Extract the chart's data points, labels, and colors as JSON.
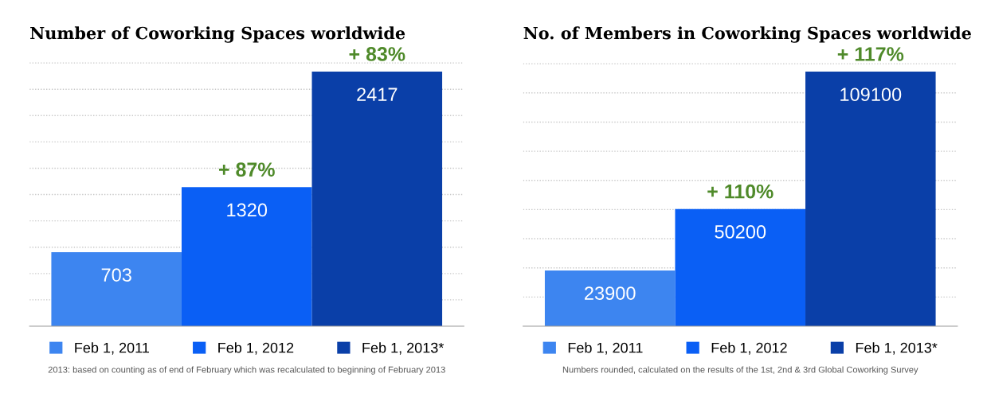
{
  "chart_data": [
    {
      "type": "bar",
      "title": "Number of Coworking Spaces worldwide",
      "categories": [
        null
      ],
      "series": [
        {
          "name": "Feb 1, 2011",
          "color": "#3d85f0",
          "values": [
            703
          ]
        },
        {
          "name": "Feb 1, 2012",
          "color": "#0a5ff5",
          "values": [
            1320
          ]
        },
        {
          "name": "Feb 1, 2013*",
          "color": "#0a3fa8",
          "values": [
            2417
          ]
        }
      ],
      "yticks": [
        {
          "value": 250,
          "label": null
        },
        {
          "value": 500,
          "label": null
        },
        {
          "value": 750,
          "label": null
        },
        {
          "value": 1000,
          "label": null
        },
        {
          "value": 1250,
          "label": null
        },
        {
          "value": 1500,
          "label": null
        },
        {
          "value": 1750,
          "label": null
        },
        {
          "value": 2000,
          "label": null
        },
        {
          "value": 2250,
          "label": null
        },
        {
          "value": 2500,
          "label": null
        }
      ],
      "grid": "y",
      "data_labels": true,
      "legend": "bottom",
      "annotations": [
        {
          "text": "+ 87%",
          "y": 1320
        },
        {
          "text": "+ 83%",
          "y": 2417
        },
        "2013: based on counting as of end of February which was recalculated to beginning of February 2013"
      ]
    },
    {
      "type": "bar",
      "title": "No. of Members in Coworking Spaces worldwide",
      "categories": [
        null
      ],
      "series": [
        {
          "name": "Feb 1, 2011",
          "color": "#3d85f0",
          "values": [
            23900
          ]
        },
        {
          "name": "Feb 1, 2012",
          "color": "#0a5ff5",
          "values": [
            50200
          ]
        },
        {
          "name": "Feb 1, 2013*",
          "color": "#0a3fa8",
          "values": [
            109100
          ]
        }
      ],
      "yticks": [
        {
          "value": 12500,
          "label": null
        },
        {
          "value": 25000,
          "label": null
        },
        {
          "value": 37500,
          "label": null
        },
        {
          "value": 50000,
          "label": null
        },
        {
          "value": 62500,
          "label": null
        },
        {
          "value": 75000,
          "label": null
        },
        {
          "value": 87500,
          "label": null
        },
        {
          "value": 100000,
          "label": null
        },
        {
          "value": 112500,
          "label": null
        }
      ],
      "grid": "y",
      "data_labels": true,
      "legend": "bottom",
      "annotations": [
        {
          "text": "+ 110%",
          "y": 50200
        },
        {
          "text": "+ 117%",
          "y": 109100
        },
        "Numbers rounded, calculated on the results of the 1st, 2nd & 3rd Global Coworking Survey"
      ]
    }
  ]
}
